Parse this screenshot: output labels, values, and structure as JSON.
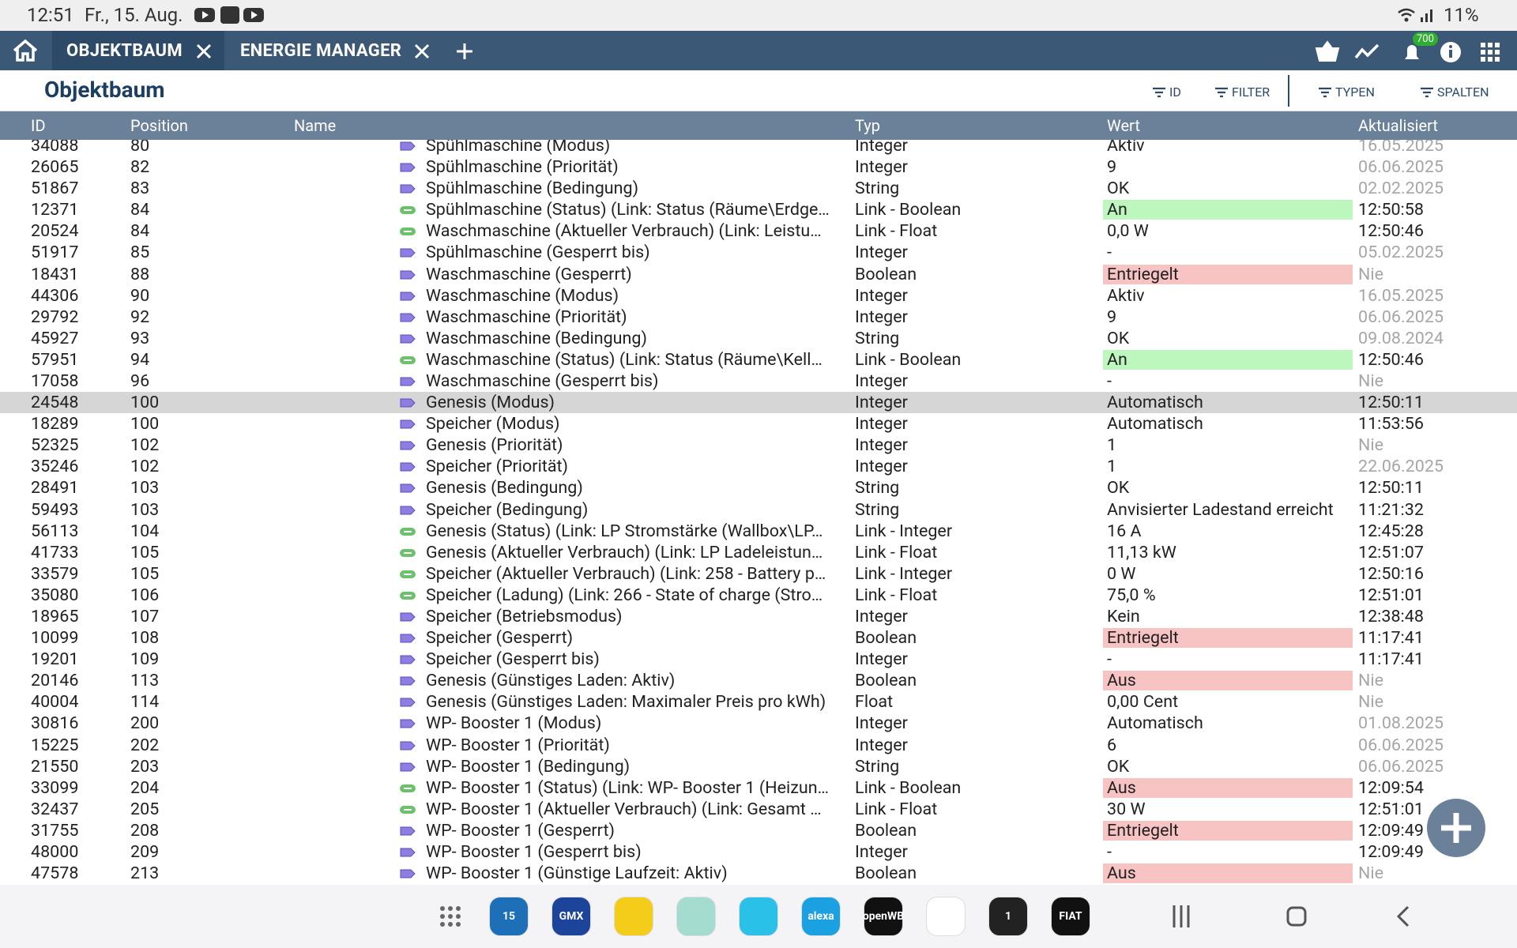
{
  "status_bar": {
    "time": "12:51",
    "date": "Fr., 15. Aug.",
    "battery": "11%"
  },
  "tabs": [
    {
      "label": "OBJEKTBAUM"
    },
    {
      "label": "ENERGIE MANAGER"
    }
  ],
  "notification_badge": "700",
  "header": {
    "title": "Objektbaum"
  },
  "toolbar": [
    "ID",
    "FILTER",
    "TYPEN",
    "SPALTEN"
  ],
  "table": {
    "columns": [
      "ID",
      "Position",
      "Name",
      "Typ",
      "Wert",
      "Aktualisiert"
    ],
    "colors": {
      "green": "#bdf7bd",
      "red": "#f8c3c3",
      "selected": "#d6d6d6",
      "muted": "#a6a6a6"
    },
    "rows": [
      {
        "cells": [
          34088,
          80,
          "Spühlmaschine (Modus)",
          "Integer",
          "Aktiv",
          "16.05.2025"
        ],
        "muted": true
      },
      {
        "cells": [
          26065,
          82,
          "Spühlmaschine (Priorität)",
          "Integer",
          "9",
          "06.06.2025"
        ],
        "muted": true
      },
      {
        "cells": [
          51867,
          83,
          "Spühlmaschine (Bedingung)",
          "String",
          "OK",
          "02.02.2025"
        ],
        "muted": true
      },
      {
        "cells": [
          12371,
          84,
          "Spühlmaschine (Status) (Link: Status (Räume\\Erdge…",
          "Link - Boolean",
          "An",
          "12:50:58"
        ],
        "link": true,
        "highlight": "green"
      },
      {
        "cells": [
          20524,
          84,
          "Waschmaschine (Aktueller Verbrauch) (Link: Leistu…",
          "Link - Float",
          "0,0 W",
          "12:50:46"
        ],
        "link": true
      },
      {
        "cells": [
          51917,
          85,
          "Spühlmaschine (Gesperrt bis)",
          "Integer",
          "-",
          "05.02.2025"
        ],
        "muted": true
      },
      {
        "cells": [
          18431,
          88,
          "Waschmaschine (Gesperrt)",
          "Boolean",
          "Entriegelt",
          "Nie"
        ],
        "muted": true,
        "highlight": "red"
      },
      {
        "cells": [
          44306,
          90,
          "Waschmaschine (Modus)",
          "Integer",
          "Aktiv",
          "16.05.2025"
        ],
        "muted": true
      },
      {
        "cells": [
          29792,
          92,
          "Waschmaschine (Priorität)",
          "Integer",
          "9",
          "06.06.2025"
        ],
        "muted": true
      },
      {
        "cells": [
          45927,
          93,
          "Waschmaschine (Bedingung)",
          "String",
          "OK",
          "09.08.2024"
        ],
        "muted": true
      },
      {
        "cells": [
          57951,
          94,
          "Waschmaschine (Status) (Link: Status (Räume\\Kell…",
          "Link - Boolean",
          "An",
          "12:50:46"
        ],
        "link": true,
        "highlight": "green"
      },
      {
        "cells": [
          17058,
          96,
          "Waschmaschine (Gesperrt bis)",
          "Integer",
          "-",
          "Nie"
        ],
        "muted": true
      },
      {
        "cells": [
          24548,
          100,
          "Genesis (Modus)",
          "Integer",
          "Automatisch",
          "12:50:11"
        ],
        "selected": true
      },
      {
        "cells": [
          18289,
          100,
          "Speicher (Modus)",
          "Integer",
          "Automatisch",
          "11:53:56"
        ]
      },
      {
        "cells": [
          52325,
          102,
          "Genesis (Priorität)",
          "Integer",
          "1",
          "Nie"
        ],
        "muted": true
      },
      {
        "cells": [
          35246,
          102,
          "Speicher (Priorität)",
          "Integer",
          "1",
          "22.06.2025"
        ],
        "muted": true
      },
      {
        "cells": [
          28491,
          103,
          "Genesis (Bedingung)",
          "String",
          "OK",
          "12:50:11"
        ]
      },
      {
        "cells": [
          59493,
          103,
          "Speicher (Bedingung)",
          "String",
          "Anvisierter Ladestand erreicht",
          "11:21:32"
        ]
      },
      {
        "cells": [
          56113,
          104,
          "Genesis (Status) (Link: LP Stromstärke (Wallbox\\LP…",
          "Link - Integer",
          "16 A",
          "12:45:28"
        ],
        "link": true
      },
      {
        "cells": [
          41733,
          105,
          "Genesis (Aktueller Verbrauch) (Link: LP Ladeleistun…",
          "Link - Float",
          "11,13 kW",
          "12:51:07"
        ],
        "link": true
      },
      {
        "cells": [
          33579,
          105,
          "Speicher (Aktueller Verbrauch) (Link: 258 - Battery p…",
          "Link - Integer",
          "0 W",
          "12:50:16"
        ],
        "link": true
      },
      {
        "cells": [
          35080,
          106,
          "Speicher (Ladung) (Link: 266 - State of charge (Stro…",
          "Link - Float",
          "75,0 %",
          "12:51:01"
        ],
        "link": true
      },
      {
        "cells": [
          18965,
          107,
          "Speicher (Betriebsmodus)",
          "Integer",
          "Kein",
          "12:38:48"
        ]
      },
      {
        "cells": [
          10099,
          108,
          "Speicher (Gesperrt)",
          "Boolean",
          "Entriegelt",
          "11:17:41"
        ],
        "highlight": "red"
      },
      {
        "cells": [
          19201,
          109,
          "Speicher (Gesperrt bis)",
          "Integer",
          "-",
          "11:17:41"
        ]
      },
      {
        "cells": [
          20146,
          113,
          "Genesis (Günstiges Laden: Aktiv)",
          "Boolean",
          "Aus",
          "Nie"
        ],
        "muted": true,
        "highlight": "red"
      },
      {
        "cells": [
          40004,
          114,
          "Genesis (Günstiges Laden: Maximaler Preis pro kWh)",
          "Float",
          "0,00 Cent",
          "Nie"
        ],
        "muted": true
      },
      {
        "cells": [
          30816,
          200,
          "WP- Booster 1 (Modus)",
          "Integer",
          "Automatisch",
          "01.08.2025"
        ],
        "muted": true
      },
      {
        "cells": [
          15225,
          202,
          "WP- Booster 1 (Priorität)",
          "Integer",
          "6",
          "06.06.2025"
        ],
        "muted": true
      },
      {
        "cells": [
          21550,
          203,
          "WP- Booster 1 (Bedingung)",
          "String",
          "OK",
          "06.06.2025"
        ],
        "muted": true
      },
      {
        "cells": [
          33099,
          204,
          "WP- Booster 1 (Status) (Link: WP- Booster 1 (Heizun…",
          "Link - Boolean",
          "Aus",
          "12:09:54"
        ],
        "link": true,
        "highlight": "red"
      },
      {
        "cells": [
          32437,
          205,
          "WP- Booster 1 (Aktueller Verbrauch) (Link: Gesamt …",
          "Link - Float",
          "30 W",
          "12:51:01"
        ],
        "link": true
      },
      {
        "cells": [
          31755,
          208,
          "WP- Booster 1 (Gesperrt)",
          "Boolean",
          "Entriegelt",
          "12:09:49"
        ],
        "highlight": "red"
      },
      {
        "cells": [
          48000,
          209,
          "WP- Booster 1 (Gesperrt bis)",
          "Integer",
          "-",
          "12:09:49"
        ]
      },
      {
        "cells": [
          47578,
          213,
          "WP- Booster 1 (Günstige Laufzeit: Aktiv)",
          "Boolean",
          "Aus",
          "Nie"
        ],
        "muted": true,
        "highlight": "red"
      }
    ]
  },
  "dock": [
    {
      "label": "15",
      "color": "#1d6fb8"
    },
    {
      "label": "GMX",
      "color": "#1c449b"
    },
    {
      "label": "",
      "color": "#f4cc1a"
    },
    {
      "label": "",
      "color": "#a5dcd0"
    },
    {
      "label": "",
      "color": "#2ac0e8"
    },
    {
      "label": "alexa",
      "color": "#1ba0e1"
    },
    {
      "label": "openWB",
      "color": "#111111"
    },
    {
      "label": "",
      "color": "#ffffff"
    },
    {
      "label": "1",
      "color": "#222222"
    },
    {
      "label": "FIAT",
      "color": "#111111"
    }
  ]
}
